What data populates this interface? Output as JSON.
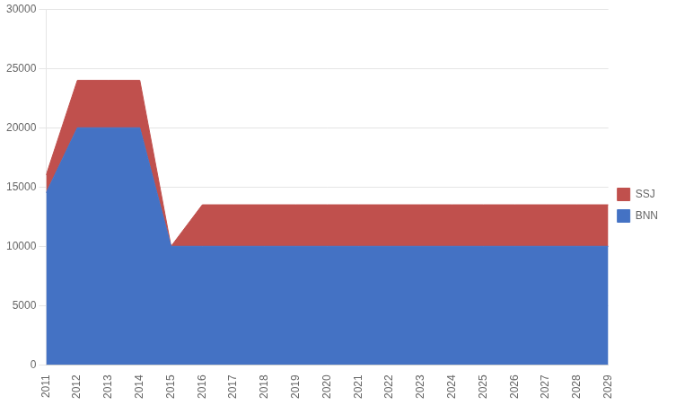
{
  "chart_data": {
    "type": "stacked_area",
    "x": [
      2011,
      2012,
      2013,
      2014,
      2015,
      2016,
      2017,
      2018,
      2019,
      2020,
      2021,
      2022,
      2023,
      2024,
      2025,
      2026,
      2027,
      2028,
      2029
    ],
    "series": [
      {
        "name": "BNN",
        "color": "#4472C4",
        "values": [
          14500,
          20000,
          20000,
          20000,
          10000,
          10000,
          10000,
          10000,
          10000,
          10000,
          10000,
          10000,
          10000,
          10000,
          10000,
          10000,
          10000,
          10000,
          10000
        ]
      },
      {
        "name": "SSJ",
        "color": "#C0504D",
        "values": [
          1500,
          4000,
          4000,
          4000,
          0,
          3500,
          3500,
          3500,
          3500,
          3500,
          3500,
          3500,
          3500,
          3500,
          3500,
          3500,
          3500,
          3500,
          3500
        ]
      }
    ],
    "xlim": [
      2011,
      2029
    ],
    "xticks": [
      2011,
      2012,
      2013,
      2014,
      2015,
      2016,
      2017,
      2018,
      2019,
      2020,
      2021,
      2022,
      2023,
      2024,
      2025,
      2026,
      2027,
      2028,
      2029
    ],
    "ylim": [
      0,
      30000
    ],
    "yticks": [
      0,
      5000,
      10000,
      15000,
      20000,
      25000,
      30000
    ],
    "stacked": true,
    "grid": "y",
    "legend": "right"
  }
}
